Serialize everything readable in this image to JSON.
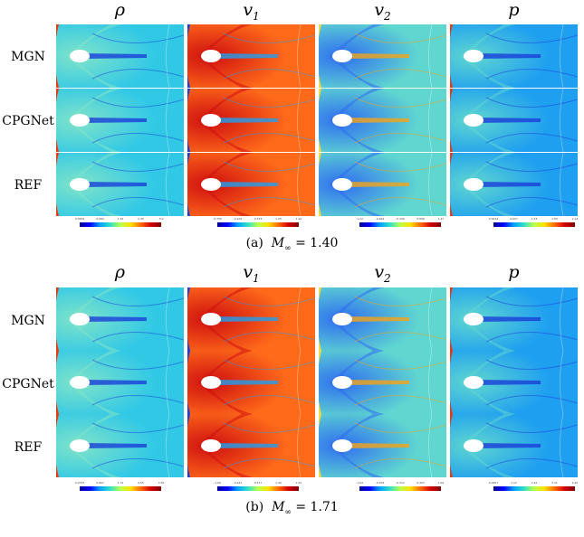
{
  "columns": [
    {
      "symbol": "ρ",
      "sub": ""
    },
    {
      "symbol": "v",
      "sub": "1"
    },
    {
      "symbol": "v",
      "sub": "2"
    },
    {
      "symbol": "p",
      "sub": ""
    }
  ],
  "rows": [
    "MGN",
    "CPGNet",
    "REF"
  ],
  "panels": [
    {
      "caption_prefix": "(a)",
      "caption_math": "M",
      "caption_sub": "∞",
      "caption_value": "= 1.40",
      "colorbars": [
        {
          "ticks": [
            "0.0959",
            "0.660",
            "1.22",
            "2.35",
            "3.0"
          ]
        },
        {
          "ticks": [
            "-0.759",
            "-0.102",
            "0.574",
            "1.25",
            "1.92"
          ]
        },
        {
          "ticks": [
            "-1.12",
            "-0.649",
            "-0.126",
            "0.896",
            "1.47"
          ]
        },
        {
          "ticks": [
            "0.0224",
            "0.627",
            "1.23",
            "1.83",
            "2.23"
          ]
        }
      ]
    },
    {
      "caption_prefix": "(b)",
      "caption_math": "M",
      "caption_sub": "∞",
      "caption_value": "= 1.71",
      "colorbars": [
        {
          "ticks": [
            "0.0733",
            "0.897",
            "1.72",
            "2.55",
            "3.39"
          ]
        },
        {
          "ticks": [
            "-1.06",
            "-0.241",
            "0.577",
            "1.40",
            "2.22"
          ]
        },
        {
          "ticks": [
            "-1.64",
            "-0.976",
            "-0.312",
            "0.353",
            "1.02"
          ]
        },
        {
          "ticks": [
            "0.0351",
            "1.12",
            "2.22",
            "3.31",
            "4.40"
          ]
        }
      ]
    }
  ]
}
